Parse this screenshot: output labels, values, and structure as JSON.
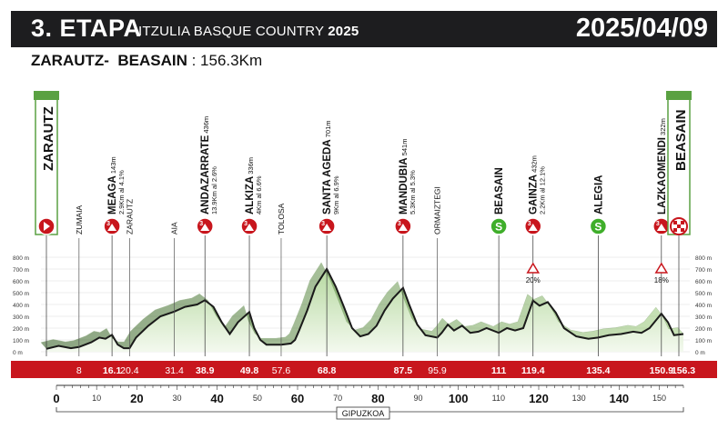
{
  "header": {
    "stage": "3. ETAPA",
    "race_prefix": "ITZULIA BASQUE COUNTRY",
    "race_year": "2025",
    "date": "2025/04/09"
  },
  "route": {
    "start": "ZARAUTZ-",
    "finish": "BEASAIN",
    "distance": " : 156.3Km"
  },
  "endpoints": {
    "start_label": "ZARAUTZ",
    "finish_label": "BEASAIN"
  },
  "waypoints": [
    {
      "name": "MEAGA",
      "alt": "143m",
      "climb": "2.9Km al 4.1%",
      "km": "16.1",
      "pos": 16.1,
      "kind": "climb",
      "cat": "3"
    },
    {
      "name": "ZARAUTZ",
      "km": "20.4",
      "pos": 20.4,
      "kind": "town"
    },
    {
      "name": "ZUMAIA",
      "km": "8",
      "pos": 8,
      "kind": "town"
    },
    {
      "name": "AIA",
      "km": "31.4",
      "pos": 31.4,
      "kind": "town"
    },
    {
      "name": "ANDAZARRATE",
      "alt": "436m",
      "climb": "13.9Km al 2.6%",
      "km": "38.9",
      "pos": 38.9,
      "kind": "climb",
      "cat": "3"
    },
    {
      "name": "ALKIZA",
      "alt": "336m",
      "climb": "4Km al 6.6%",
      "km": "49.8",
      "pos": 49.8,
      "kind": "climb",
      "cat": "3"
    },
    {
      "name": "TOLOSA",
      "km": "57.6",
      "pos": 57.6,
      "kind": "town"
    },
    {
      "name": "SANTA AGEDA",
      "alt": "701m",
      "climb": "9Km al 6.9%",
      "km": "68.8",
      "pos": 68.8,
      "kind": "climb",
      "cat": "3"
    },
    {
      "name": "MANDUBIA",
      "alt": "541m",
      "climb": "5.3Km al 5.3%",
      "km": "87.5",
      "pos": 87.5,
      "kind": "climb",
      "cat": "3"
    },
    {
      "name": "ORMAIZTEGI",
      "km": "95.9",
      "pos": 95.9,
      "kind": "town"
    },
    {
      "name": "BEASAIN",
      "km": "111",
      "pos": 111,
      "kind": "sprint",
      "cat": "S"
    },
    {
      "name": "GAINZA",
      "alt": "432m",
      "climb": "2.2Km al 12.1%",
      "km": "119.4",
      "pos": 119.4,
      "kind": "climb",
      "cat": "3"
    },
    {
      "name": "ALEGIA",
      "km": "135.4",
      "pos": 135.4,
      "kind": "sprint",
      "cat": "S"
    },
    {
      "name": "LAZKAOMENDI",
      "alt": "322m",
      "climb": "1.4Km al 10%",
      "km": "150.9",
      "pos": 150.9,
      "kind": "climb",
      "cat": "3"
    }
  ],
  "finish_km": "156.3",
  "gradients": [
    {
      "label": "20%",
      "pos": 119.4
    },
    {
      "label": "18%",
      "pos": 150.9
    }
  ],
  "elevation_axis": [
    "800 m",
    "700 m",
    "600 m",
    "500 m",
    "400 m",
    "300 m",
    "200 m",
    "100 m",
    "0 m"
  ],
  "distance_axis": {
    "major": [
      "0",
      "20",
      "40",
      "60",
      "80",
      "100",
      "120",
      "140"
    ],
    "minor": [
      "10",
      "30",
      "50",
      "70",
      "90",
      "110",
      "130",
      "150"
    ]
  },
  "region": "GIPUZKOA",
  "colors": {
    "header_bg": "#1d1d1f",
    "km_bar": "#c8161d",
    "start_frame": "#5aa142",
    "climb_marker": "#c8161d",
    "sprint_marker": "#3fae2a"
  },
  "chart_data": {
    "type": "area",
    "title": "",
    "xlabel": "",
    "ylabel": "",
    "x_unit": "km",
    "y_unit": "m",
    "xlim": [
      0,
      156.3
    ],
    "ylim": [
      0,
      800
    ],
    "x": [
      0,
      3,
      6,
      8,
      11,
      13,
      14.5,
      16.1,
      17.5,
      19,
      20.4,
      22,
      25,
      28,
      31.4,
      34,
      37,
      38.9,
      41,
      43,
      45,
      47,
      49.8,
      51,
      52.5,
      54,
      57.6,
      60,
      61,
      62,
      64,
      66,
      68.8,
      71,
      73,
      75,
      77,
      79,
      81,
      83,
      85,
      87.5,
      89,
      91,
      93,
      95.9,
      97,
      98.5,
      100,
      102,
      104,
      106,
      108,
      111,
      113,
      115,
      117,
      119.4,
      121,
      123,
      125,
      127,
      130,
      133,
      135.4,
      138,
      141,
      144,
      146,
      148,
      150.9,
      152.5,
      154,
      156.3
    ],
    "y": [
      25,
      50,
      30,
      40,
      80,
      120,
      110,
      143,
      60,
      30,
      30,
      120,
      220,
      300,
      340,
      380,
      400,
      436,
      380,
      250,
      150,
      250,
      336,
      200,
      100,
      60,
      60,
      70,
      100,
      180,
      350,
      550,
      701,
      550,
      380,
      200,
      130,
      150,
      220,
      350,
      450,
      541,
      400,
      230,
      140,
      120,
      160,
      230,
      180,
      220,
      160,
      170,
      200,
      160,
      200,
      180,
      200,
      432,
      390,
      420,
      330,
      200,
      130,
      110,
      120,
      140,
      150,
      170,
      160,
      200,
      322,
      250,
      140,
      150
    ]
  }
}
